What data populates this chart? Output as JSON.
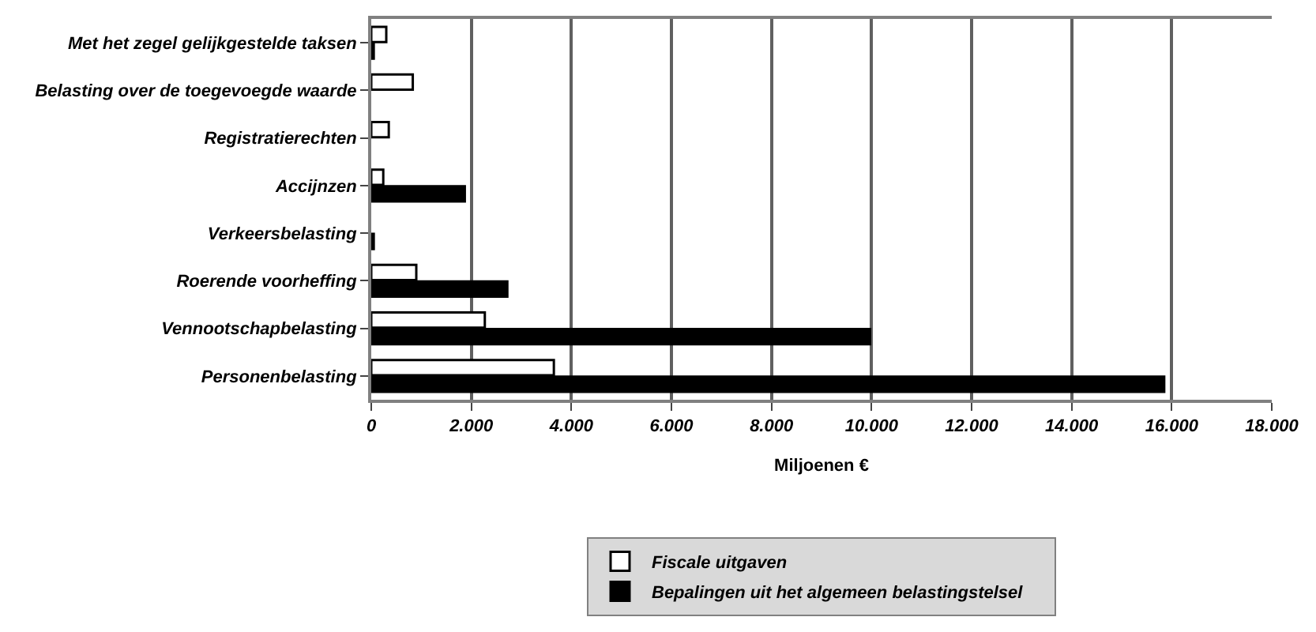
{
  "chart_data": {
    "type": "bar",
    "orientation": "horizontal",
    "xlabel": "Miljoenen €",
    "categories": [
      "Met het zegel gelijkgestelde taksen",
      "Belasting over de toegevoegde waarde",
      "Registratierechten",
      "Accijnzen",
      "Verkeersbelasting",
      "Roerende voorheffing",
      "Vennootschapbelasting",
      "Personenbelasting"
    ],
    "series": [
      {
        "name": "Fiscale uitgaven",
        "color": "#ffffff",
        "values": [
          300,
          830,
          350,
          240,
          null,
          900,
          2270,
          3650
        ]
      },
      {
        "name": "Bepalingen uit het algemeen belastingstelsel",
        "color": "#000000",
        "values": [
          50,
          null,
          null,
          1870,
          50,
          2720,
          9970,
          15850
        ]
      }
    ],
    "xlim": [
      0,
      18000
    ],
    "xticks": [
      {
        "value": 0,
        "label": "0"
      },
      {
        "value": 2000,
        "label": "2.000"
      },
      {
        "value": 4000,
        "label": "4.000"
      },
      {
        "value": 6000,
        "label": "6.000"
      },
      {
        "value": 8000,
        "label": "8.000"
      },
      {
        "value": 10000,
        "label": "10.000"
      },
      {
        "value": 12000,
        "label": "12.000"
      },
      {
        "value": 14000,
        "label": "14.000"
      },
      {
        "value": 16000,
        "label": "16.000"
      },
      {
        "value": 18000,
        "label": "18.000"
      }
    ],
    "grid": "x",
    "legend": "bottom"
  }
}
